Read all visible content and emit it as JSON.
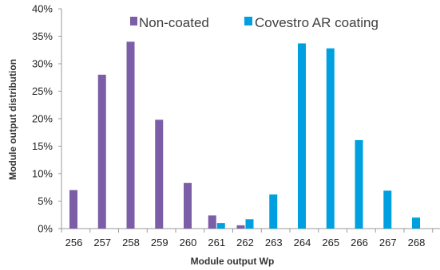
{
  "chart_data": {
    "type": "bar",
    "categories": [
      "256",
      "257",
      "258",
      "259",
      "260",
      "261",
      "262",
      "263",
      "264",
      "265",
      "266",
      "267",
      "268"
    ],
    "series": [
      {
        "name": "Non-coated",
        "color": "#7b5ea7",
        "values": [
          7,
          28,
          34,
          19.8,
          8.3,
          2.4,
          0.6,
          0,
          0,
          0,
          0,
          0,
          0
        ]
      },
      {
        "name": "Covestro AR coating",
        "color": "#00a0e0",
        "values": [
          0,
          0,
          0,
          0,
          0,
          1,
          1.7,
          6.2,
          33.7,
          32.8,
          16.1,
          6.9,
          2
        ]
      }
    ],
    "xlabel": "Module output Wp",
    "ylabel": "Module output distribution",
    "ylim": [
      0,
      40
    ],
    "yticks": [
      "0%",
      "5%",
      "10%",
      "15%",
      "20%",
      "25%",
      "30%",
      "35%",
      "40%"
    ],
    "legend_position": "top",
    "grid": false
  }
}
